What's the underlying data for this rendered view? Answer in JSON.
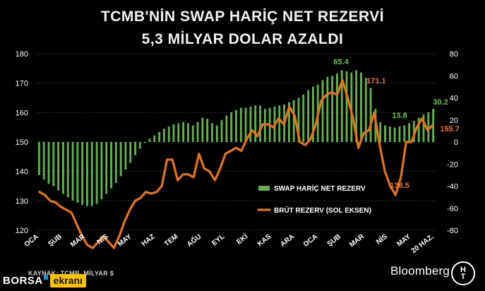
{
  "title_line1": "TCMB'NİN SWAP HARİÇ NET REZERVİ",
  "title_line2": "5,3 MİLYAR DOLAR AZALDI",
  "source": "KAYNAK: TCMB, MİLYAR $",
  "branding": {
    "borsa_word": "BORSA",
    "ekrani_word": "ekranı",
    "bloomberg": "Bloomberg",
    "ht_top": "H",
    "ht_bottom": "T"
  },
  "colors": {
    "background": "#000000",
    "bar_green": "#5fb24c",
    "line_orange": "#e4731c",
    "annotation_green": "#6cc24a",
    "annotation_orange": "#ff6a2a",
    "grid": "#6a6a6a",
    "tick_text": "#ffffff"
  },
  "chart_data": {
    "type": "bar+line",
    "x_labels": [
      "OCA",
      "ŞUB",
      "MAR",
      "NİS",
      "MAY",
      "HAZ",
      "TEM",
      "AĞU",
      "EYL",
      "EKİ",
      "KAS",
      "ARA",
      "OCA",
      "ŞUB",
      "MAR",
      "NİS",
      "MAY",
      "20 HAZ."
    ],
    "left_axis": {
      "ticks": [
        120,
        130,
        140,
        150,
        160,
        170,
        180
      ],
      "ylim": [
        120,
        180
      ]
    },
    "right_axis": {
      "ticks": [
        -80,
        -60,
        -40,
        -20,
        0,
        20,
        40,
        60,
        80
      ],
      "ylim": [
        -80,
        80
      ]
    },
    "grid": true,
    "series": [
      {
        "name": "SWAP HARİÇ NET REZERV",
        "type": "bar",
        "axis": "right",
        "values": [
          -30,
          -34,
          -38,
          -40,
          -44,
          -47,
          -50,
          -53,
          -55,
          -57,
          -58,
          -58,
          -56,
          -52,
          -47,
          -42,
          -37,
          -31,
          -25,
          -19,
          -12,
          -6,
          -1,
          3,
          6,
          9,
          12,
          14,
          16,
          17,
          18,
          17,
          15,
          18,
          22,
          21,
          17,
          15,
          20,
          24,
          27,
          29,
          31,
          31,
          32,
          33,
          33,
          30,
          31,
          32,
          33,
          34,
          36,
          38,
          40,
          43,
          47,
          50,
          52,
          56,
          59,
          60,
          62,
          65,
          64,
          63,
          65,
          63,
          58,
          49,
          30,
          18,
          15,
          14,
          13,
          14,
          15,
          17,
          19,
          22,
          25,
          27,
          30
        ]
      },
      {
        "name": "BRÜT REZERV (SOL EKSEN)",
        "type": "line",
        "axis": "left",
        "values": [
          133,
          132,
          130,
          129.5,
          128,
          127,
          126,
          122,
          118,
          115,
          114,
          116,
          118,
          116,
          114,
          118,
          123,
          127,
          130,
          131,
          133,
          132.5,
          133,
          135,
          144,
          144,
          137,
          139,
          139,
          138,
          146,
          141,
          140,
          137,
          141,
          146,
          147,
          148,
          147,
          151,
          154,
          152,
          156,
          156,
          155,
          158,
          156,
          162,
          159,
          150,
          149,
          151,
          156,
          164,
          166,
          167,
          166,
          171,
          165,
          158,
          148,
          153,
          154,
          160,
          149,
          140,
          135,
          132,
          138,
          150,
          150,
          155,
          158,
          154,
          155.7
        ]
      }
    ],
    "annotations": [
      {
        "text": "65.4",
        "color": "green"
      },
      {
        "text": "171.1",
        "color": "orange"
      },
      {
        "text": "13.8",
        "color": "green"
      },
      {
        "text": "138.5",
        "color": "orange"
      },
      {
        "text": "30.2",
        "color": "green"
      },
      {
        "text": "155.7",
        "color": "orange"
      }
    ]
  }
}
